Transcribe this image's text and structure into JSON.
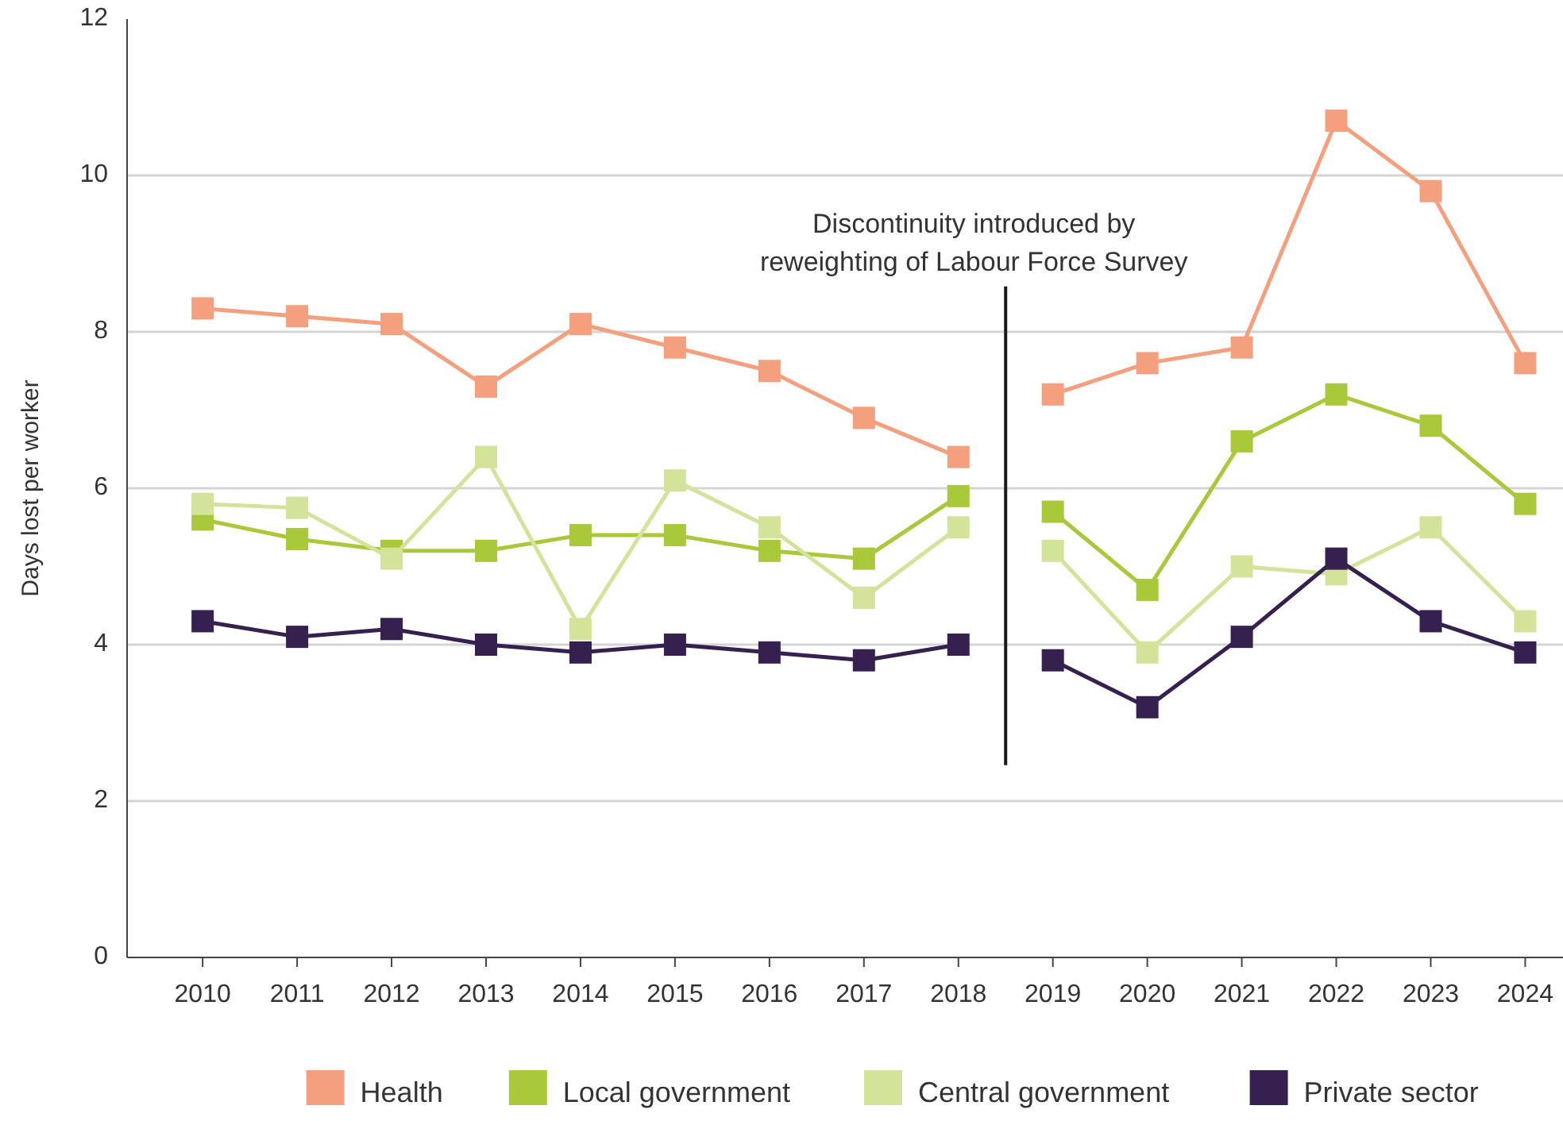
{
  "chart_data": {
    "type": "line",
    "ylabel": "Days lost per worker",
    "x": [
      2010,
      2011,
      2012,
      2013,
      2014,
      2015,
      2016,
      2017,
      2018,
      2019,
      2020,
      2021,
      2022,
      2023,
      2024
    ],
    "xlim": [
      2009.2,
      2024.4
    ],
    "xticks": [
      2010,
      2011,
      2012,
      2013,
      2014,
      2015,
      2016,
      2017,
      2018,
      2019,
      2020,
      2021,
      2022,
      2023,
      2024
    ],
    "ylim": [
      0,
      12
    ],
    "yticks": [
      0,
      2,
      4,
      6,
      8,
      10,
      12
    ],
    "grid": "y",
    "legend": "bottom",
    "marker": "square",
    "line_style": "solid",
    "ref_lines": [
      {
        "axis": "x",
        "value": 2018.5,
        "label": "Discontinuity introduced by\nreweighting of Labour Force Survey",
        "color": "#1a1a1a"
      }
    ],
    "series": [
      {
        "name": "Health",
        "color": "#f4a07f",
        "values": [
          8.3,
          8.2,
          8.1,
          7.3,
          8.1,
          7.8,
          7.5,
          6.9,
          6.4,
          7.2,
          7.6,
          7.8,
          10.7,
          9.8,
          7.6
        ]
      },
      {
        "name": "Local government",
        "color": "#a9c83a",
        "values": [
          5.6,
          5.35,
          5.2,
          5.2,
          5.4,
          5.4,
          5.2,
          5.1,
          5.9,
          5.7,
          4.7,
          6.6,
          7.2,
          6.8,
          5.8
        ]
      },
      {
        "name": "Central government",
        "color": "#d4e39a",
        "values": [
          5.8,
          5.75,
          5.1,
          6.4,
          4.2,
          6.1,
          5.5,
          4.6,
          5.5,
          5.2,
          3.9,
          5.0,
          4.9,
          5.5,
          4.3
        ]
      },
      {
        "name": "Private sector",
        "color": "#35204f",
        "values": [
          4.3,
          4.1,
          4.2,
          4.0,
          3.9,
          4.0,
          3.9,
          3.8,
          4.0,
          3.8,
          3.2,
          4.1,
          5.1,
          4.3,
          3.9
        ]
      }
    ]
  }
}
